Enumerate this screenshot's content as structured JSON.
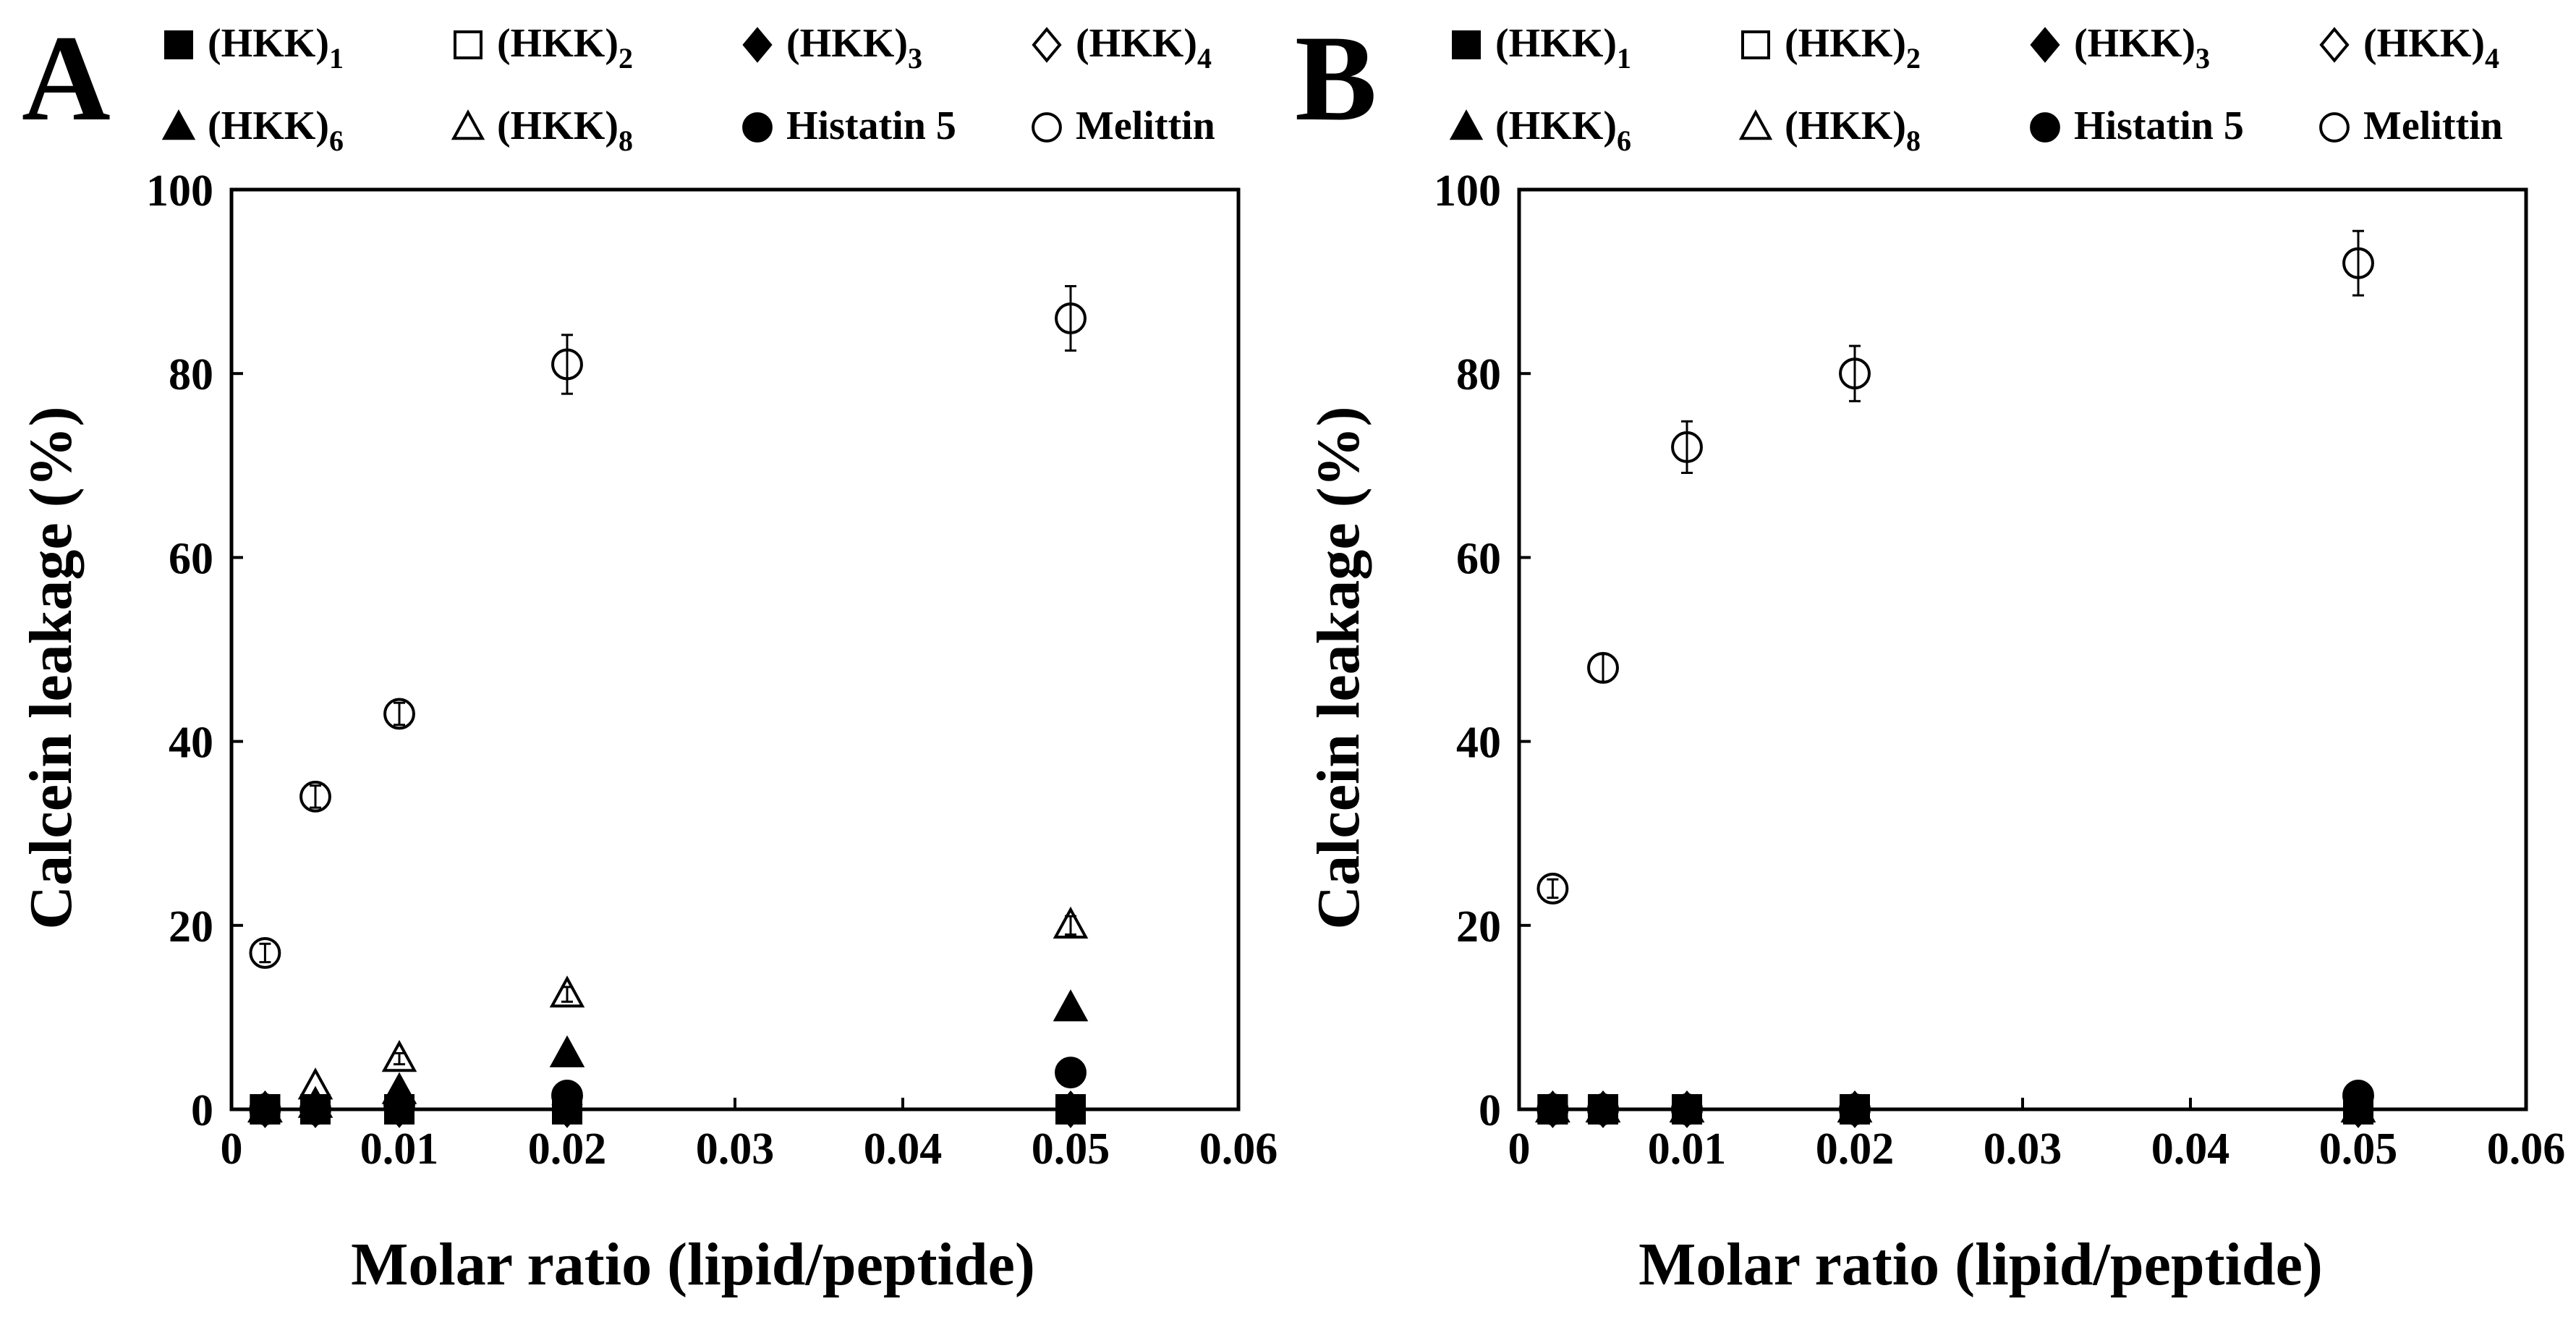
{
  "chart_data": [
    {
      "panel": "A",
      "type": "scatter",
      "xlabel": "Molar ratio (lipid/peptide)",
      "ylabel": "Calcein leakage (%)",
      "xlim": [
        0,
        0.06
      ],
      "ylim": [
        0,
        100
      ],
      "xticks": [
        0,
        0.01,
        0.02,
        0.03,
        0.04,
        0.05,
        0.06
      ],
      "yticks": [
        0,
        20,
        40,
        60,
        80,
        100
      ],
      "x_tick_labels": [
        "0",
        "0.01",
        "0.02",
        "0.03",
        "0.04",
        "0.05",
        "0.06"
      ],
      "y_tick_labels": [
        "0",
        "20",
        "40",
        "60",
        "80",
        "100"
      ],
      "grid": false,
      "legend_position": "top",
      "series": [
        {
          "name": "(HKK)1",
          "base": "(HKK)",
          "sub": "1",
          "marker": "square",
          "filled": true,
          "points": [
            [
              0.002,
              0,
              0
            ],
            [
              0.005,
              0,
              0
            ],
            [
              0.01,
              0,
              0
            ],
            [
              0.02,
              0,
              0
            ],
            [
              0.05,
              0,
              0
            ]
          ]
        },
        {
          "name": "(HKK)2",
          "base": "(HKK)",
          "sub": "2",
          "marker": "square",
          "filled": false,
          "points": [
            [
              0.002,
              0,
              0
            ],
            [
              0.005,
              0,
              0
            ],
            [
              0.01,
              0,
              0
            ],
            [
              0.02,
              0,
              0
            ],
            [
              0.05,
              0,
              0
            ]
          ]
        },
        {
          "name": "(HKK)3",
          "base": "(HKK)",
          "sub": "3",
          "marker": "diamond",
          "filled": true,
          "points": [
            [
              0.002,
              0,
              0
            ],
            [
              0.005,
              0,
              0
            ],
            [
              0.01,
              0.5,
              0
            ],
            [
              0.02,
              0.5,
              0
            ],
            [
              0.05,
              0,
              0
            ]
          ]
        },
        {
          "name": "(HKK)4",
          "base": "(HKK)",
          "sub": "4",
          "marker": "diamond",
          "filled": false,
          "points": [
            [
              0.002,
              0,
              0
            ],
            [
              0.005,
              0,
              0
            ],
            [
              0.01,
              0,
              0
            ],
            [
              0.02,
              0,
              0
            ],
            [
              0.05,
              0,
              0
            ]
          ]
        },
        {
          "name": "(HKK)6",
          "base": "(HKK)",
          "sub": "6",
          "marker": "triangle",
          "filled": true,
          "points": [
            [
              0.002,
              0,
              0
            ],
            [
              0.005,
              0.5,
              0
            ],
            [
              0.01,
              2,
              0
            ],
            [
              0.02,
              6,
              0
            ],
            [
              0.05,
              11,
              0
            ]
          ]
        },
        {
          "name": "(HKK)8",
          "base": "(HKK)",
          "sub": "8",
          "marker": "triangle",
          "filled": false,
          "points": [
            [
              0.002,
              0,
              0
            ],
            [
              0.005,
              2.5,
              0
            ],
            [
              0.01,
              5.5,
              0.6
            ],
            [
              0.02,
              12.5,
              0.8
            ],
            [
              0.05,
              20,
              1
            ]
          ]
        },
        {
          "name": "Histatin 5",
          "base": "Histatin 5",
          "sub": "",
          "marker": "circle",
          "filled": true,
          "points": [
            [
              0.002,
              0,
              0
            ],
            [
              0.005,
              0,
              0
            ],
            [
              0.01,
              0.5,
              0
            ],
            [
              0.02,
              1.5,
              0
            ],
            [
              0.05,
              4,
              0
            ]
          ]
        },
        {
          "name": "Melittin",
          "base": "Melittin",
          "sub": "",
          "marker": "circle",
          "filled": false,
          "points": [
            [
              0.002,
              17,
              1
            ],
            [
              0.005,
              34,
              1.2
            ],
            [
              0.01,
              43,
              1.2
            ],
            [
              0.02,
              81,
              3.2
            ],
            [
              0.05,
              86,
              3.5
            ]
          ]
        }
      ]
    },
    {
      "panel": "B",
      "type": "scatter",
      "xlabel": "Molar ratio (lipid/peptide)",
      "ylabel": "Calcein leakage (%)",
      "xlim": [
        0,
        0.06
      ],
      "ylim": [
        0,
        100
      ],
      "xticks": [
        0,
        0.01,
        0.02,
        0.03,
        0.04,
        0.05,
        0.06
      ],
      "yticks": [
        0,
        20,
        40,
        60,
        80,
        100
      ],
      "x_tick_labels": [
        "0",
        "0.01",
        "0.02",
        "0.03",
        "0.04",
        "0.05",
        "0.06"
      ],
      "y_tick_labels": [
        "0",
        "20",
        "40",
        "60",
        "80",
        "100"
      ],
      "grid": false,
      "legend_position": "top",
      "series": [
        {
          "name": "(HKK)1",
          "base": "(HKK)",
          "sub": "1",
          "marker": "square",
          "filled": true,
          "points": [
            [
              0.002,
              0,
              0
            ],
            [
              0.005,
              0,
              0
            ],
            [
              0.01,
              0,
              0
            ],
            [
              0.02,
              0,
              0
            ],
            [
              0.05,
              0,
              0
            ]
          ]
        },
        {
          "name": "(HKK)2",
          "base": "(HKK)",
          "sub": "2",
          "marker": "square",
          "filled": false,
          "points": [
            [
              0.002,
              0,
              0
            ],
            [
              0.005,
              0,
              0
            ],
            [
              0.01,
              0,
              0
            ],
            [
              0.02,
              0,
              0
            ],
            [
              0.05,
              0,
              0
            ]
          ]
        },
        {
          "name": "(HKK)3",
          "base": "(HKK)",
          "sub": "3",
          "marker": "diamond",
          "filled": true,
          "points": [
            [
              0.002,
              0,
              0
            ],
            [
              0.005,
              0,
              0
            ],
            [
              0.01,
              0,
              0
            ],
            [
              0.02,
              0,
              0
            ],
            [
              0.05,
              0,
              0
            ]
          ]
        },
        {
          "name": "(HKK)4",
          "base": "(HKK)",
          "sub": "4",
          "marker": "diamond",
          "filled": false,
          "points": [
            [
              0.002,
              0,
              0
            ],
            [
              0.005,
              0,
              0
            ],
            [
              0.01,
              0,
              0
            ],
            [
              0.02,
              0,
              0
            ],
            [
              0.05,
              0,
              0
            ]
          ]
        },
        {
          "name": "(HKK)6",
          "base": "(HKK)",
          "sub": "6",
          "marker": "triangle",
          "filled": true,
          "points": [
            [
              0.002,
              0,
              0
            ],
            [
              0.005,
              0,
              0
            ],
            [
              0.01,
              0,
              0
            ],
            [
              0.02,
              0,
              0
            ],
            [
              0.05,
              0,
              0
            ]
          ]
        },
        {
          "name": "(HKK)8",
          "base": "(HKK)",
          "sub": "8",
          "marker": "triangle",
          "filled": false,
          "points": [
            [
              0.002,
              0,
              0
            ],
            [
              0.005,
              0,
              0
            ],
            [
              0.01,
              0,
              0
            ],
            [
              0.02,
              0,
              0
            ],
            [
              0.05,
              0,
              0
            ]
          ]
        },
        {
          "name": "Histatin 5",
          "base": "Histatin 5",
          "sub": "",
          "marker": "circle",
          "filled": true,
          "points": [
            [
              0.002,
              0,
              0
            ],
            [
              0.005,
              0,
              0
            ],
            [
              0.01,
              0,
              0
            ],
            [
              0.02,
              0,
              0
            ],
            [
              0.05,
              1.5,
              0
            ]
          ]
        },
        {
          "name": "Melittin",
          "base": "Melittin",
          "sub": "",
          "marker": "circle",
          "filled": false,
          "points": [
            [
              0.002,
              24,
              1
            ],
            [
              0.005,
              48,
              1.5
            ],
            [
              0.01,
              72,
              2.8
            ],
            [
              0.02,
              80,
              3
            ],
            [
              0.05,
              92,
              3.5
            ]
          ]
        }
      ]
    }
  ]
}
